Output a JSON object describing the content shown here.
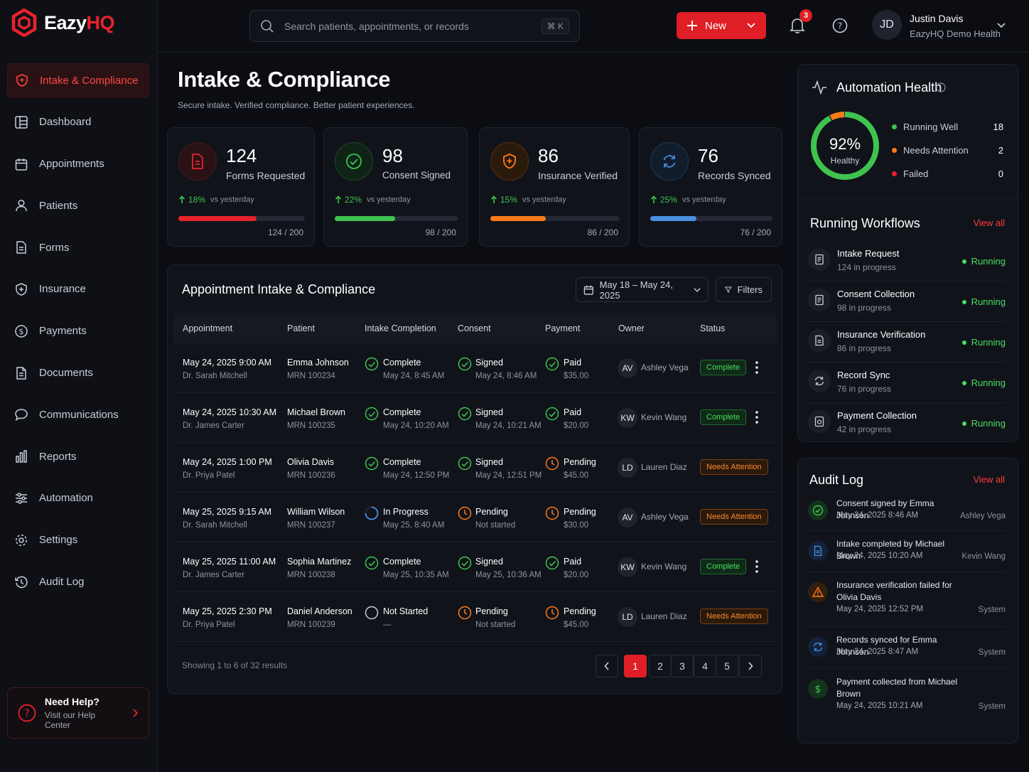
{
  "brand": {
    "name_main": "Eazy",
    "name_accent": "HQ"
  },
  "sidebar": {
    "items": [
      {
        "label": "Intake & Compliance",
        "icon": "shield-icon",
        "active": true
      },
      {
        "label": "Dashboard",
        "icon": "grid-icon"
      },
      {
        "label": "Appointments",
        "icon": "calendar-icon"
      },
      {
        "label": "Patients",
        "icon": "user-icon"
      },
      {
        "label": "Forms",
        "icon": "form-icon"
      },
      {
        "label": "Insurance",
        "icon": "shield-plus-icon"
      },
      {
        "label": "Payments",
        "icon": "dollar-icon"
      },
      {
        "label": "Documents",
        "icon": "document-icon"
      },
      {
        "label": "Communications",
        "icon": "chat-icon"
      },
      {
        "label": "Reports",
        "icon": "bar-chart-icon"
      },
      {
        "label": "Automation",
        "icon": "sliders-icon"
      },
      {
        "label": "Settings",
        "icon": "gear-icon"
      },
      {
        "label": "Audit Log",
        "icon": "history-icon"
      }
    ],
    "help": {
      "title": "Need Help?",
      "subtitle": "Visit our Help Center"
    }
  },
  "header": {
    "search_placeholder": "Search patients, appointments, or records",
    "shortcut": "⌘ K",
    "new_label": "New",
    "notifications": "3",
    "user": {
      "initials": "JD",
      "name": "Justin Davis",
      "org": "EazyHQ Demo Health"
    }
  },
  "page": {
    "title": "Intake & Compliance",
    "subtitle": "Secure intake. Verified compliance. Better patient experiences."
  },
  "stats": [
    {
      "value": "124",
      "label": "Forms Requested",
      "delta": "18%",
      "vs": "vs yesterday",
      "count": "124 / 200",
      "progress": 0.62,
      "color": "#e8222b"
    },
    {
      "value": "98",
      "label": "Consent Signed",
      "delta": "22%",
      "vs": "vs yesterday",
      "count": "98 / 200",
      "progress": 0.49,
      "color": "#3fc34f"
    },
    {
      "value": "86",
      "label": "Insurance Verified",
      "delta": "15%",
      "vs": "vs yesterday",
      "count": "86 / 200",
      "progress": 0.43,
      "color": "#ff7a1a"
    },
    {
      "value": "76",
      "label": "Records Synced",
      "delta": "25%",
      "vs": "vs yesterday",
      "count": "76 / 200",
      "progress": 0.38,
      "color": "#4a90e2"
    }
  ],
  "table": {
    "title": "Appointment Intake & Compliance",
    "date_range": "May 18 – May 24, 2025",
    "filters_label": "Filters",
    "columns": [
      "Appointment",
      "Patient",
      "Intake Completion",
      "Consent",
      "Payment",
      "Owner",
      "Status"
    ],
    "rows": [
      {
        "date": "May 24, 2025  9:00 AM",
        "doctor": "Dr. Sarah Mitchell",
        "patient": "Emma Johnson",
        "mrn": "MRN 100234",
        "intake": "Complete",
        "intake_sub": "May 24, 8:45 AM",
        "intake_state": "ok",
        "consent": "Signed",
        "consent_sub": "May 24, 8:46 AM",
        "consent_state": "ok",
        "payment": "Paid",
        "payment_sub": "$35.00",
        "payment_state": "ok",
        "owner_initials": "AV",
        "owner": "Ashley Vega",
        "status": "Complete",
        "status_state": "ok"
      },
      {
        "date": "May 24, 2025  10:30 AM",
        "doctor": "Dr. James Carter",
        "patient": "Michael Brown",
        "mrn": "MRN 100235",
        "intake": "Complete",
        "intake_sub": "May 24, 10:20 AM",
        "intake_state": "ok",
        "consent": "Signed",
        "consent_sub": "May 24, 10:21 AM",
        "consent_state": "ok",
        "payment": "Paid",
        "payment_sub": "$20.00",
        "payment_state": "ok",
        "owner_initials": "KW",
        "owner": "Kevin Wang",
        "status": "Complete",
        "status_state": "ok"
      },
      {
        "date": "May 24, 2025  1:00 PM",
        "doctor": "Dr. Priya Patel",
        "patient": "Olivia Davis",
        "mrn": "MRN 100236",
        "intake": "Complete",
        "intake_sub": "May 24, 12:50 PM",
        "intake_state": "ok",
        "consent": "Signed",
        "consent_sub": "May 24, 12:51 PM",
        "consent_state": "ok",
        "payment": "Pending",
        "payment_sub": "$45.00",
        "payment_state": "pending",
        "owner_initials": "LD",
        "owner": "Lauren Diaz",
        "status": "Needs Attention",
        "status_state": "warn"
      },
      {
        "date": "May 25, 2025  9:15 AM",
        "doctor": "Dr. Sarah Mitchell",
        "patient": "William Wilson",
        "mrn": "MRN 100237",
        "intake": "In Progress",
        "intake_sub": "May 25, 8:40 AM",
        "intake_state": "progress",
        "consent": "Pending",
        "consent_sub": "Not started",
        "consent_state": "pending",
        "payment": "Pending",
        "payment_sub": "$30.00",
        "payment_state": "pending",
        "owner_initials": "AV",
        "owner": "Ashley Vega",
        "status": "Needs Attention",
        "status_state": "warn"
      },
      {
        "date": "May 25, 2025  11:00 AM",
        "doctor": "Dr. James Carter",
        "patient": "Sophia Martinez",
        "mrn": "MRN 100238",
        "intake": "Complete",
        "intake_sub": "May 25, 10:35 AM",
        "intake_state": "ok",
        "consent": "Signed",
        "consent_sub": "May 25, 10:36 AM",
        "consent_state": "ok",
        "payment": "Paid",
        "payment_sub": "$20.00",
        "payment_state": "ok",
        "owner_initials": "KW",
        "owner": "Kevin Wang",
        "status": "Complete",
        "status_state": "ok"
      },
      {
        "date": "May 25, 2025  2:30 PM",
        "doctor": "Dr. Priya Patel",
        "patient": "Daniel Anderson",
        "mrn": "MRN 100239",
        "intake": "Not Started",
        "intake_sub": "—",
        "intake_state": "none",
        "consent": "Pending",
        "consent_sub": "Not started",
        "consent_state": "pending",
        "payment": "Pending",
        "payment_sub": "$45.00",
        "payment_state": "pending",
        "owner_initials": "LD",
        "owner": "Lauren Diaz",
        "status": "Needs Attention",
        "status_state": "warn"
      }
    ],
    "showing": "Showing 1 to 6 of 32 results",
    "pages": [
      "1",
      "2",
      "3",
      "4",
      "5"
    ],
    "current_page": "1"
  },
  "automation": {
    "title": "Automation Health",
    "percent": "92%",
    "percent_value": 0.92,
    "healthy_label": "Healthy",
    "legend": [
      {
        "label": "Running Well",
        "value": "18",
        "color": "#3fc34f"
      },
      {
        "label": "Needs Attention",
        "value": "2",
        "color": "#ff7a1a"
      },
      {
        "label": "Failed",
        "value": "0",
        "color": "#e8222b"
      }
    ]
  },
  "workflows": {
    "title": "Running Workflows",
    "view_all": "View all",
    "items": [
      {
        "name": "Intake Request",
        "sub": "124 in progress",
        "status": "Running",
        "icon": "form-icon"
      },
      {
        "name": "Consent Collection",
        "sub": "98 in progress",
        "status": "Running",
        "icon": "form-icon"
      },
      {
        "name": "Insurance Verification",
        "sub": "86 in progress",
        "status": "Running",
        "icon": "document-icon"
      },
      {
        "name": "Record Sync",
        "sub": "76 in progress",
        "status": "Running",
        "icon": "sync-icon"
      },
      {
        "name": "Payment Collection",
        "sub": "42 in progress",
        "status": "Running",
        "icon": "payment-icon"
      }
    ]
  },
  "audit": {
    "title": "Audit Log",
    "view_all": "View all",
    "items": [
      {
        "text": "Consent signed by Emma Johnson",
        "date": "May 24, 2025  8:46 AM",
        "who": "Ashley Vega",
        "icon": "check-icon",
        "color": "#3fc34f"
      },
      {
        "text": "Intake completed by Michael Brown",
        "date": "May 24, 2025  10:20 AM",
        "who": "Kevin Wang",
        "icon": "document-icon",
        "color": "#4a90e2"
      },
      {
        "text": "Insurance verification failed for Olivia Davis",
        "date": "May 24, 2025  12:52 PM",
        "who": "System",
        "icon": "warning-icon",
        "color": "#ff7a1a"
      },
      {
        "text": "Records synced for Emma Johnson",
        "date": "May 24, 2025  8:47 AM",
        "who": "System",
        "icon": "sync-icon",
        "color": "#4a90e2"
      },
      {
        "text": "Payment collected from Michael Brown",
        "date": "May 24, 2025  10:21 AM",
        "who": "System",
        "icon": "dollar-icon",
        "color": "#3fc34f"
      }
    ]
  }
}
